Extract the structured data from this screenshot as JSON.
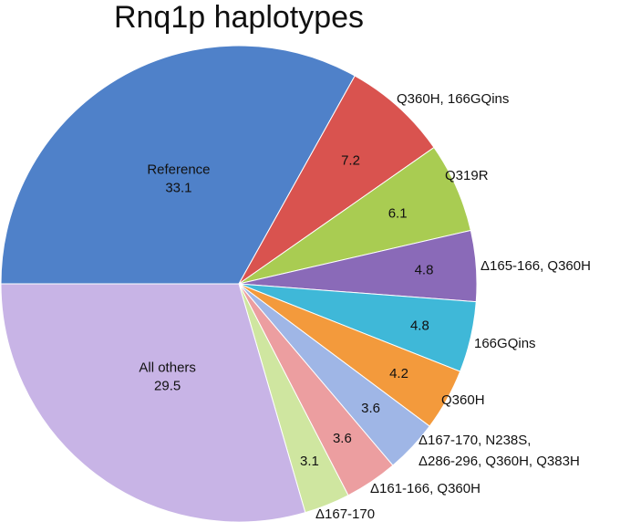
{
  "chart_data": {
    "type": "pie",
    "title": "Rnq1p haplotypes",
    "slices": [
      {
        "label": "Reference",
        "value": 33.1,
        "color": "#4f81c9"
      },
      {
        "label": "Q360H, 166GQins",
        "value": 7.2,
        "color": "#d9534f"
      },
      {
        "label": "Q319R",
        "value": 6.1,
        "color": "#a9cc52"
      },
      {
        "label": "Δ165-166, Q360H",
        "value": 4.8,
        "color": "#8a6ab8"
      },
      {
        "label": "166GQins",
        "value": 4.8,
        "color": "#3fb8d8"
      },
      {
        "label": "Q360H",
        "value": 4.2,
        "color": "#f39a3c"
      },
      {
        "label": "Δ167-170, N238S, Δ286-296, Q360H, Q383H",
        "label_lines": [
          "Δ167-170, N238S,",
          "Δ286-296, Q360H, Q383H"
        ],
        "value": 3.6,
        "color": "#9fb6e6"
      },
      {
        "label": "Δ161-166, Q360H",
        "value": 3.6,
        "color": "#ec9ea0"
      },
      {
        "label": "Δ167-170",
        "value": 3.1,
        "color": "#cfe6a0"
      },
      {
        "label": "All others",
        "value": 29.5,
        "color": "#c8b4e6"
      }
    ]
  }
}
